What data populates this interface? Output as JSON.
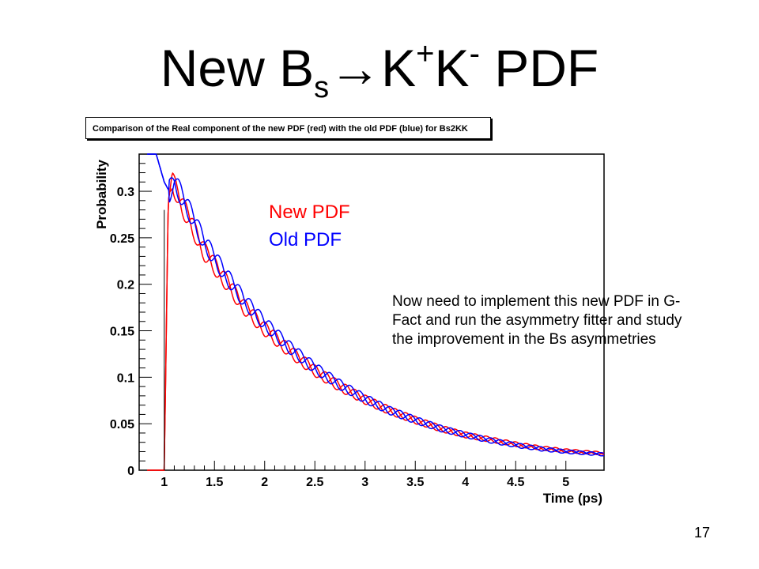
{
  "slide": {
    "title_main": "New B",
    "title_sub": "s",
    "title_mid": "→K",
    "title_sup1": "+",
    "title_mid2": "K",
    "title_sup2": "-",
    "title_end": " PDF",
    "annotation": "Now need to implement this new PDF in G-Fact and run the asymmetry fitter and study the improvement in the Bs asymmetries",
    "page_number": "17"
  },
  "chart_data": {
    "type": "line",
    "title": "Comparison of the Real component of the new PDF (red) with the old PDF (blue) for Bs2KK",
    "xlabel": "Time (ps)",
    "ylabel": "Probability",
    "xlim": [
      0.75,
      5.38
    ],
    "ylim": [
      0,
      0.34
    ],
    "xticks": [
      "1",
      "1.5",
      "2",
      "2.5",
      "3",
      "3.5",
      "4",
      "4.5",
      "5"
    ],
    "xtick_values": [
      1,
      1.5,
      2,
      2.5,
      3,
      3.5,
      4,
      4.5,
      5
    ],
    "yticks": [
      "0",
      "0.05",
      "0.1",
      "0.15",
      "0.2",
      "0.25",
      "0.3"
    ],
    "ytick_values": [
      0,
      0.05,
      0.1,
      0.15,
      0.2,
      0.25,
      0.3
    ],
    "legend": [
      {
        "label": "New PDF",
        "color": "#ff0000"
      },
      {
        "label": "Old PDF",
        "color": "#0000ff"
      }
    ],
    "series": [
      {
        "name": "New PDF",
        "color": "#ff0000",
        "x": [
          0.83,
          1.0,
          1.04,
          1.08,
          1.2,
          1.4,
          1.6,
          1.8,
          2.0,
          2.25,
          2.5,
          2.75,
          3.0,
          3.25,
          3.5,
          3.75,
          4.0,
          4.25,
          4.5,
          4.75,
          5.0,
          5.25,
          5.38
        ],
        "y": [
          0,
          0,
          0.29,
          0.31,
          0.28,
          0.235,
          0.205,
          0.175,
          0.152,
          0.128,
          0.107,
          0.09,
          0.076,
          0.064,
          0.054,
          0.045,
          0.038,
          0.033,
          0.028,
          0.024,
          0.021,
          0.019,
          0.018
        ]
      },
      {
        "name": "Old PDF",
        "color": "#0000ff",
        "x": [
          0.83,
          0.92,
          1.0,
          1.05,
          1.1,
          1.2,
          1.4,
          1.6,
          1.8,
          2.0,
          2.25,
          2.5,
          2.75,
          3.0,
          3.25,
          3.5,
          3.75,
          4.0,
          4.25,
          4.5,
          4.75,
          5.0,
          5.25,
          5.38
        ],
        "y": [
          0.34,
          0.34,
          0.31,
          0.3,
          0.31,
          0.29,
          0.245,
          0.212,
          0.182,
          0.158,
          0.132,
          0.11,
          0.092,
          0.077,
          0.064,
          0.054,
          0.045,
          0.038,
          0.032,
          0.027,
          0.023,
          0.02,
          0.018,
          0.017
        ]
      }
    ]
  }
}
